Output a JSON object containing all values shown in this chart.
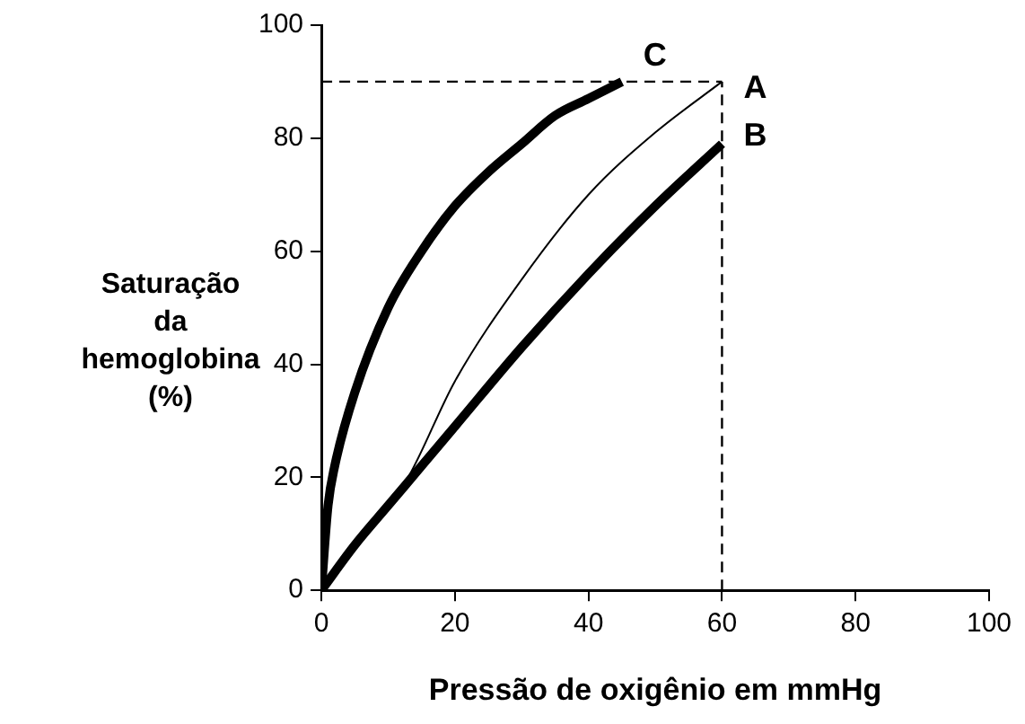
{
  "chart_data": {
    "type": "line",
    "xlabel": "Pressão de oxigênio em mmHg",
    "ylabel": "Saturação da hemoglobina (%)",
    "xlim": [
      0,
      100
    ],
    "ylim": [
      0,
      100
    ],
    "xticks": [
      0,
      20,
      40,
      60,
      80,
      100
    ],
    "yticks": [
      0,
      20,
      40,
      60,
      80,
      100
    ],
    "grid": false,
    "legend": false,
    "marker": "none",
    "series": [
      {
        "name": "C",
        "color": "#000000",
        "x": [
          0,
          1,
          2,
          5,
          10,
          15,
          20,
          25,
          30,
          35,
          40,
          45
        ],
        "values": [
          0,
          15,
          22,
          35,
          50,
          60,
          68,
          74,
          79,
          84,
          87,
          90
        ]
      },
      {
        "name": "A",
        "color": "#000000",
        "x": [
          0,
          5,
          10,
          13,
          20,
          30,
          40,
          50,
          60
        ],
        "values": [
          0,
          8,
          15,
          20,
          37,
          55,
          70,
          81,
          90
        ]
      },
      {
        "name": "B",
        "color": "#000000",
        "x": [
          0,
          5,
          10,
          15,
          20,
          30,
          40,
          50,
          60
        ],
        "values": [
          0,
          8,
          15,
          22,
          29,
          43,
          56,
          68,
          79
        ]
      }
    ],
    "ref_lines": [
      {
        "axis": "y",
        "value": 90,
        "line_style": "dashed"
      },
      {
        "axis": "x",
        "value": 60,
        "line_style": "dashed"
      }
    ]
  }
}
